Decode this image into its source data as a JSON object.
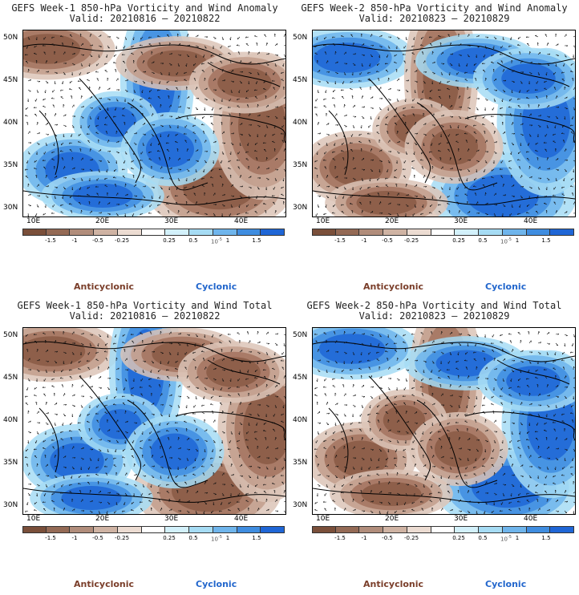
{
  "panels": [
    {
      "title": "GEFS Week-1 850-hPa Vorticity and Wind Anomaly",
      "valid": "Valid: 20210816 – 20210822",
      "variant": 0
    },
    {
      "title": "GEFS Week-2 850-hPa Vorticity and Wind Anomaly",
      "valid": "Valid: 20210823 – 20210829",
      "variant": 1
    },
    {
      "title": "GEFS Week-1 850-hPa Vorticity and Wind Total",
      "valid": "Valid: 20210816 – 20210822",
      "variant": 2
    },
    {
      "title": "GEFS Week-2 850-hPa Vorticity and Wind Total",
      "valid": "Valid: 20210823 – 20210829",
      "variant": 3
    }
  ],
  "lat_labels": [
    "50N",
    "45N",
    "40N",
    "35N",
    "30N"
  ],
  "lon_labels": [
    "10E",
    "20E",
    "30E",
    "40E"
  ],
  "colorbar": {
    "labels": [
      "-1.5",
      "-1",
      "-0.5",
      "-0.25",
      "0.25",
      "0.5",
      "1",
      "1.5"
    ],
    "scale_label": "10",
    "scale_exp": "-5",
    "colors": [
      "#7a4f3a",
      "#946a55",
      "#b18d7b",
      "#cfb3a3",
      "#ecdcd2",
      "#ffffff",
      "#d3f1fb",
      "#a6dcf4",
      "#6fb5ec",
      "#3f8de0",
      "#1f66d6"
    ]
  },
  "legend": {
    "anticyclonic": "Anticyclonic",
    "cyclonic": "Cyclonic"
  },
  "colors": {
    "brown": "#8a5a45",
    "blue": "#2e7fdd"
  }
}
